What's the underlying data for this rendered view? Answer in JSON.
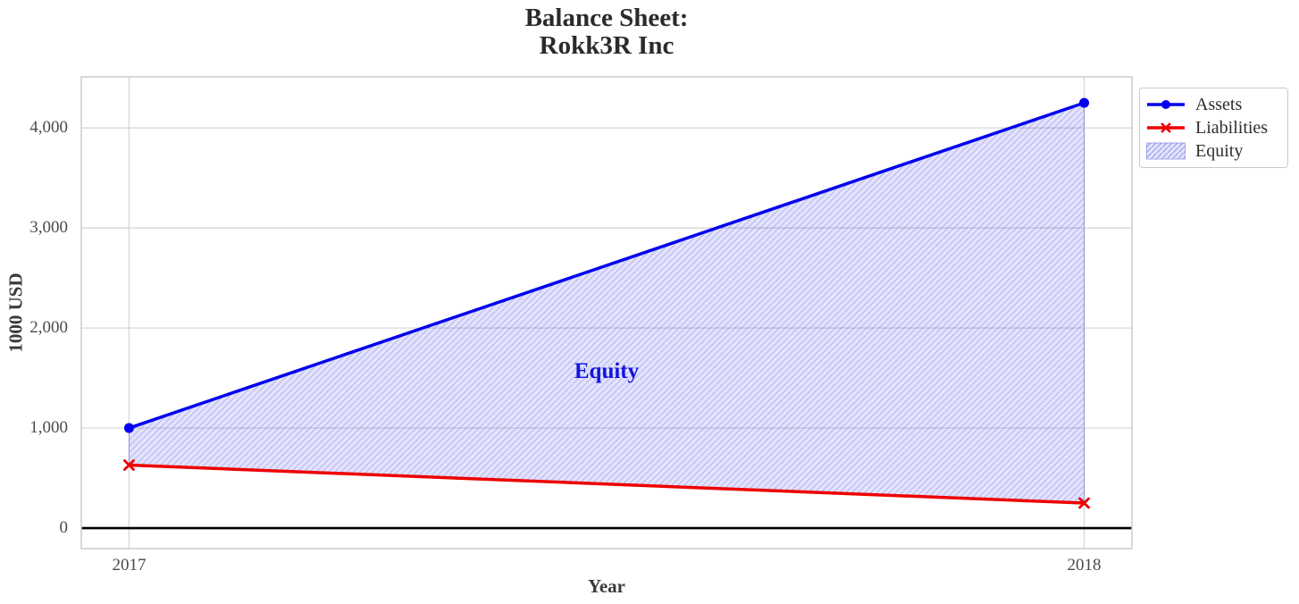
{
  "title": {
    "line1": "Balance Sheet:",
    "line2": "Rokk3R Inc"
  },
  "legend": {
    "items": [
      {
        "label": "Assets",
        "swatch": "line-circle",
        "color": "#0000ee"
      },
      {
        "label": "Liabilities",
        "swatch": "line-x",
        "color": "#ee0000"
      },
      {
        "label": "Equity",
        "swatch": "hatch-patch",
        "color": "#0000ee"
      }
    ],
    "position": "upper right outside"
  },
  "chart_data": {
    "type": "line",
    "title": "Balance Sheet:\nRokk3R Inc",
    "title_lines": [
      "Balance Sheet:",
      "Rokk3R Inc"
    ],
    "xlabel": "Year",
    "ylabel": "1000 USD",
    "x": [
      2017,
      2018
    ],
    "series": [
      {
        "name": "Assets",
        "values": [
          1000,
          4250
        ],
        "color": "#0000ee",
        "marker": "circle",
        "line_width": 3.5
      },
      {
        "name": "Liabilities",
        "values": [
          630,
          250
        ],
        "color": "#ee0000",
        "marker": "x",
        "line_width": 3.5
      }
    ],
    "fill_between": {
      "label": "Equity",
      "upper_series": "Assets",
      "lower_series": "Liabilities",
      "fill_color": "rgba(0,0,230,0.11)",
      "hatch": "/",
      "hatch_color": "rgba(20,20,200,0.17)",
      "edge_color": "rgba(60,60,220,0.35)"
    },
    "annotations": [
      {
        "text": "Equity",
        "x": 2017.5,
        "y": 1550,
        "color": "#1414dd"
      }
    ],
    "xticks": [
      2017,
      2018
    ],
    "xtick_labels": [
      "2017",
      "2018"
    ],
    "yticks": [
      0,
      1000,
      2000,
      3000,
      4000
    ],
    "ytick_labels": [
      "0",
      "1,000",
      "2,000",
      "3,000",
      "4,000"
    ],
    "xlim": [
      2016.95,
      2018.05
    ],
    "ylim": [
      -205,
      4510
    ],
    "grid": true,
    "grid_color": "#d4d4d4",
    "spine_color": "#cccccc",
    "zero_line": true,
    "zero_line_color": "#000000",
    "legend_position": "upper right outside"
  }
}
